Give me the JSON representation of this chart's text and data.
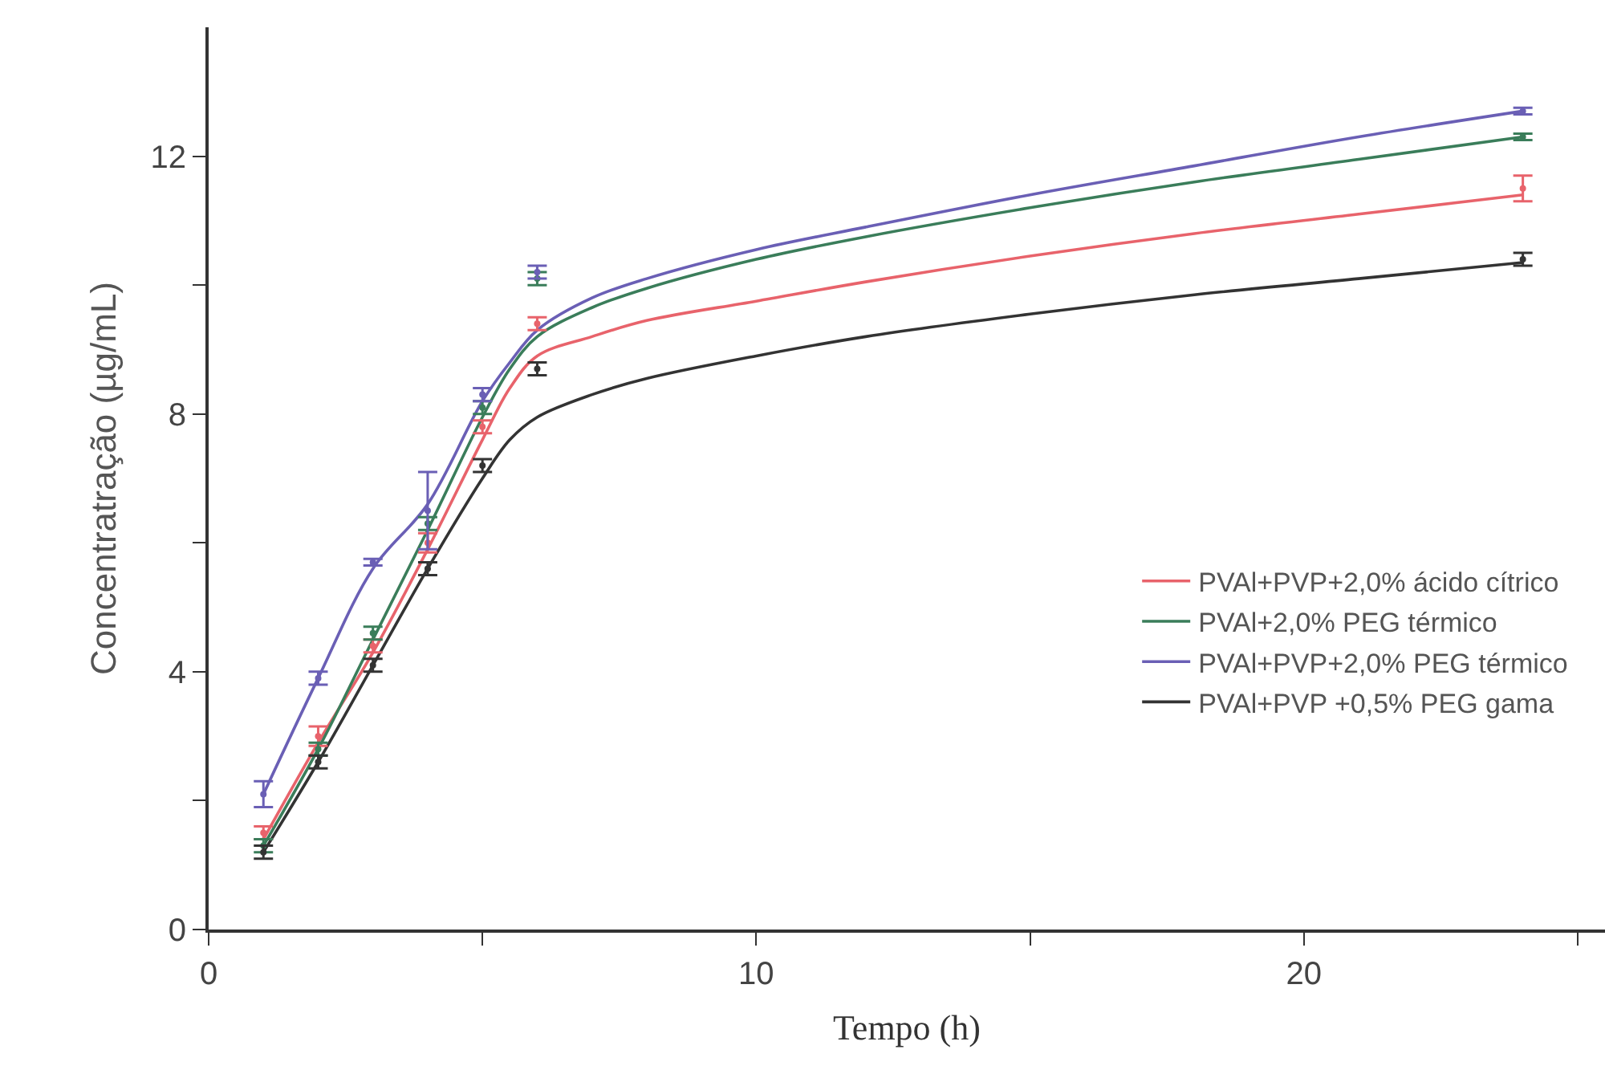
{
  "chart_data": {
    "type": "line",
    "xlabel": "Tempo (h)",
    "ylabel": "Concentratração (µg/mL)",
    "xlim": [
      0,
      25.5
    ],
    "ylim": [
      0,
      14
    ],
    "xticks": [
      0,
      {
        "value": 5,
        "label": null
      },
      10,
      {
        "value": 15,
        "label": null
      },
      20,
      {
        "value": 25,
        "label": null
      }
    ],
    "yticks": [
      0,
      {
        "value": 2,
        "label": null
      },
      4,
      {
        "value": 6,
        "label": null
      },
      8,
      {
        "value": 10,
        "label": null
      },
      12
    ],
    "legend": "bottom right",
    "line_style": "solid",
    "series": [
      {
        "name": "PVAl+PVP+2,0% ácido cítrico",
        "color": "#e8636b",
        "x": [
          1,
          2,
          3,
          4,
          5,
          5.5,
          6,
          7,
          8,
          10,
          12,
          15,
          18,
          21,
          24
        ],
        "values": [
          1.4,
          2.9,
          4.3,
          5.9,
          7.6,
          8.4,
          8.9,
          9.2,
          9.45,
          9.75,
          10.05,
          10.45,
          10.8,
          11.1,
          11.4
        ]
      },
      {
        "name": "PVAl+2,0% PEG térmico",
        "color": "#3a7d5a",
        "x": [
          1,
          2,
          3,
          4,
          5,
          5.5,
          6,
          7,
          8,
          10,
          12,
          15,
          18,
          21,
          24
        ],
        "values": [
          1.3,
          2.8,
          4.5,
          6.2,
          7.95,
          8.7,
          9.2,
          9.65,
          9.95,
          10.4,
          10.75,
          11.2,
          11.6,
          11.95,
          12.3
        ]
      },
      {
        "name": "PVAl+PVP+2,0% PEG térmico",
        "color": "#6a5fb5",
        "x": [
          1,
          2,
          3,
          4,
          5,
          5.5,
          6,
          7,
          8,
          10,
          12,
          15,
          18,
          21,
          24
        ],
        "values": [
          2.1,
          3.9,
          5.6,
          6.6,
          8.2,
          8.8,
          9.3,
          9.8,
          10.1,
          10.55,
          10.9,
          11.4,
          11.85,
          12.3,
          12.7
        ]
      },
      {
        "name": "PVAl+PVP +0,5% PEG gama",
        "color": "#333333",
        "x": [
          1,
          2,
          3,
          4,
          5,
          5.5,
          6,
          7,
          8,
          10,
          12,
          15,
          18,
          21,
          24
        ],
        "values": [
          1.2,
          2.6,
          4.1,
          5.6,
          7.0,
          7.6,
          7.95,
          8.3,
          8.55,
          8.9,
          9.2,
          9.55,
          9.85,
          10.1,
          10.35
        ]
      },
      {
        "type": "scatter",
        "color": "#e8636b",
        "x": [
          1,
          2,
          3,
          4,
          5,
          6,
          24
        ],
        "values": [
          1.5,
          3.0,
          4.4,
          6.0,
          7.8,
          9.4,
          11.5
        ],
        "errors": [
          0.1,
          0.15,
          0.1,
          0.15,
          0.1,
          0.1,
          0.2
        ]
      },
      {
        "type": "scatter",
        "color": "#3a7d5a",
        "x": [
          1,
          2,
          3,
          4,
          5,
          6,
          24
        ],
        "values": [
          1.3,
          2.8,
          4.6,
          6.3,
          8.1,
          10.1,
          12.3
        ],
        "errors": [
          0.1,
          0.1,
          0.1,
          0.1,
          0.1,
          0.1,
          0.05
        ]
      },
      {
        "type": "scatter",
        "color": "#6a5fb5",
        "x": [
          1,
          2,
          3,
          4,
          5,
          6,
          24
        ],
        "values": [
          2.1,
          3.9,
          5.7,
          6.5,
          8.3,
          10.2,
          12.7
        ],
        "errors": [
          0.2,
          0.1,
          0.05,
          0.6,
          0.1,
          0.1,
          0.05
        ]
      },
      {
        "type": "scatter",
        "color": "#333333",
        "x": [
          1,
          2,
          3,
          4,
          5,
          6,
          24
        ],
        "values": [
          1.2,
          2.6,
          4.1,
          5.6,
          7.2,
          8.7,
          10.4
        ],
        "errors": [
          0.1,
          0.1,
          0.1,
          0.1,
          0.1,
          0.1,
          0.1
        ]
      }
    ]
  }
}
